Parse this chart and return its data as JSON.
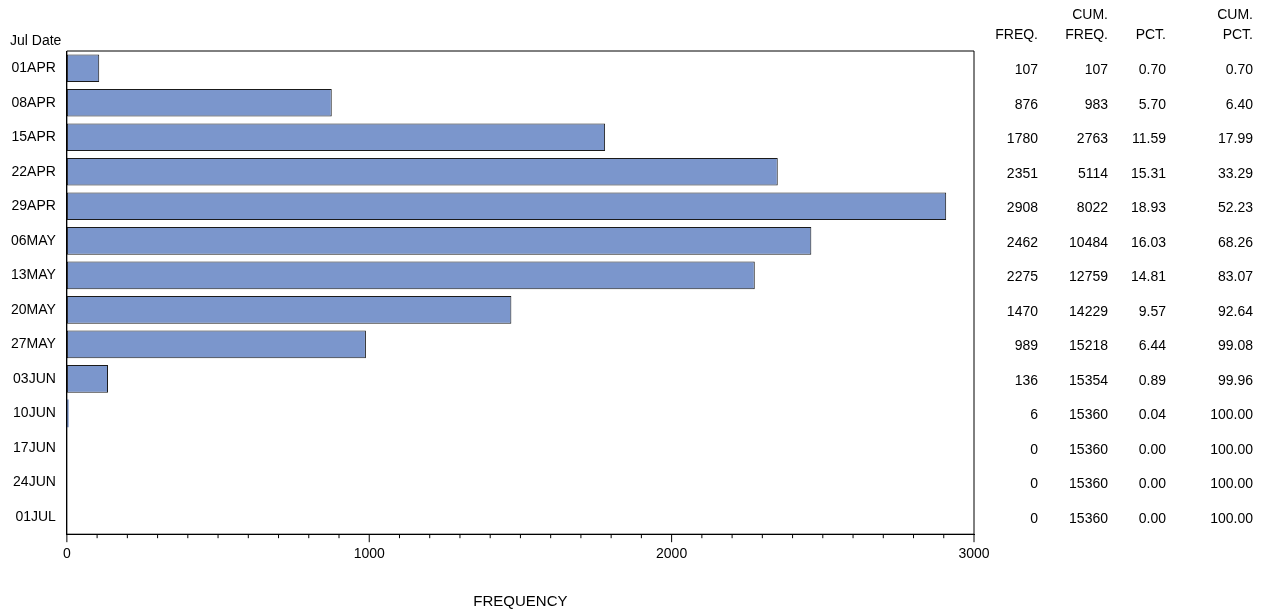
{
  "chart_data": {
    "type": "bar",
    "orientation": "horizontal",
    "ylabel": "Jul Date",
    "xlabel": "FREQUENCY",
    "categories": [
      "01APR",
      "08APR",
      "15APR",
      "22APR",
      "29APR",
      "06MAY",
      "13MAY",
      "20MAY",
      "27MAY",
      "03JUN",
      "10JUN",
      "17JUN",
      "24JUN",
      "01JUL"
    ],
    "series": [
      {
        "color": "#7b96cc",
        "values": [
          107,
          876,
          1780,
          2351,
          2908,
          2462,
          2275,
          1470,
          989,
          136,
          6,
          0,
          0,
          0
        ]
      }
    ],
    "xlim": [
      0,
      3000
    ],
    "xticks": [
      0,
      {
        "value": 100,
        "label": null
      },
      {
        "value": 200,
        "label": null
      },
      {
        "value": 300,
        "label": null
      },
      {
        "value": 400,
        "label": null
      },
      {
        "value": 500,
        "label": null
      },
      {
        "value": 600,
        "label": null
      },
      {
        "value": 700,
        "label": null
      },
      {
        "value": 800,
        "label": null
      },
      {
        "value": 900,
        "label": null
      },
      1000,
      {
        "value": 1100,
        "label": null
      },
      {
        "value": 1200,
        "label": null
      },
      {
        "value": 1300,
        "label": null
      },
      {
        "value": 1400,
        "label": null
      },
      {
        "value": 1500,
        "label": null
      },
      {
        "value": 1600,
        "label": null
      },
      {
        "value": 1700,
        "label": null
      },
      {
        "value": 1800,
        "label": null
      },
      {
        "value": 1900,
        "label": null
      },
      2000,
      {
        "value": 2100,
        "label": null
      },
      {
        "value": 2200,
        "label": null
      },
      {
        "value": 2300,
        "label": null
      },
      {
        "value": 2400,
        "label": null
      },
      {
        "value": 2500,
        "label": null
      },
      {
        "value": 2600,
        "label": null
      },
      {
        "value": 2700,
        "label": null
      },
      {
        "value": 2800,
        "label": null
      },
      {
        "value": 2900,
        "label": null
      },
      3000
    ],
    "grid": false,
    "legend": false,
    "data_labels": true,
    "annotations": [
      "FREQ.",
      "CUM. FREQ.",
      "PCT.",
      "CUM. PCT.",
      "107",
      "983",
      "2763",
      "5114",
      "8022",
      "10484",
      "12759",
      "14229",
      "15218",
      "15354",
      "15360",
      "15360",
      "15360",
      "15360",
      "0.70",
      "5.70",
      "11.59",
      "15.31",
      "18.93",
      "16.03",
      "14.81",
      "9.57",
      "6.44",
      "0.89",
      "0.04",
      "0.00",
      "0.00",
      "0.00",
      "0.70",
      "6.40",
      "17.99",
      "33.29",
      "52.23",
      "68.26",
      "83.07",
      "92.64",
      "99.08",
      "99.96",
      "100.00",
      "100.00",
      "100.00",
      "100.00"
    ]
  }
}
